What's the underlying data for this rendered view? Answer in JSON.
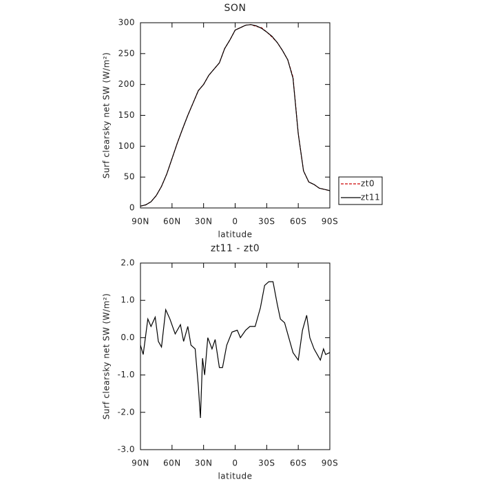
{
  "chart_data": [
    {
      "type": "line",
      "title": "SON",
      "xlabel": "latitude",
      "ylabel": "Surf clearsky net SW (W/m²)",
      "x": [
        90,
        85,
        80,
        75,
        70,
        65,
        60,
        55,
        50,
        45,
        40,
        35,
        30,
        25,
        20,
        15,
        10,
        5,
        0,
        -5,
        -10,
        -15,
        -20,
        -25,
        -30,
        -35,
        -40,
        -45,
        -50,
        -55,
        -60,
        -65,
        -70,
        -75,
        -80,
        -85,
        -90
      ],
      "series": [
        {
          "name": "zt0",
          "color": "#cc0000",
          "linestyle": "dashed",
          "values": [
            3,
            5,
            10,
            20,
            35,
            55,
            80,
            105,
            128,
            150,
            170,
            190,
            200,
            215,
            225,
            235,
            258,
            272,
            288,
            292,
            296,
            297,
            294,
            292,
            285,
            277,
            268,
            255,
            240,
            212,
            120,
            60,
            42,
            38,
            32,
            30,
            28
          ]
        },
        {
          "name": "zt11",
          "color": "#000000",
          "linestyle": "solid",
          "values": [
            3,
            5,
            10,
            20,
            35,
            55,
            80,
            105,
            128,
            150,
            170,
            190,
            200,
            215,
            225,
            235,
            258,
            272,
            288,
            292,
            296,
            297,
            295,
            291,
            285,
            278,
            268,
            255,
            240,
            210,
            120,
            60,
            42,
            38,
            32,
            30,
            28
          ]
        }
      ],
      "xlim": [
        90,
        -90
      ],
      "xticks": [
        {
          "value": 90,
          "label": "90N"
        },
        {
          "value": 60,
          "label": "60N"
        },
        {
          "value": 30,
          "label": "30N"
        },
        0,
        {
          "value": -30,
          "label": "30S"
        },
        {
          "value": -60,
          "label": "60S"
        },
        {
          "value": -90,
          "label": "90S"
        }
      ],
      "ylim": [
        0,
        300
      ],
      "yticks": [
        0,
        50,
        100,
        150,
        200,
        250,
        300
      ],
      "legend": "outside-right"
    },
    {
      "type": "line",
      "title": "zt11 - zt0",
      "xlabel": "latitude",
      "ylabel": "Surf clearsky net SW (W/m²)",
      "x": [
        90,
        87.4,
        83,
        80,
        76,
        73,
        70,
        66,
        62,
        57,
        52,
        49,
        45,
        42,
        38,
        35,
        33,
        31,
        29,
        26,
        22,
        19,
        15,
        12,
        8,
        3,
        -2,
        -5,
        -10,
        -14,
        -19,
        -24,
        -28,
        -32,
        -36,
        -40,
        -43,
        -47,
        -51,
        -55,
        -60,
        -64,
        -68,
        -71,
        -75,
        -81,
        -84,
        -86,
        -90
      ],
      "series": [
        {
          "name": "zt11 - zt0",
          "color": "#000000",
          "linestyle": "solid",
          "values": [
            -0.2,
            -0.45,
            0.5,
            0.3,
            0.55,
            -0.1,
            -0.25,
            0.75,
            0.5,
            0.1,
            0.35,
            -0.1,
            0.3,
            -0.2,
            -0.3,
            -1.3,
            -2.15,
            -0.55,
            -1.0,
            0.0,
            -0.3,
            -0.05,
            -0.8,
            -0.8,
            -0.2,
            0.15,
            0.2,
            0.0,
            0.2,
            0.3,
            0.3,
            0.8,
            1.4,
            1.5,
            1.5,
            0.9,
            0.5,
            0.4,
            0.0,
            -0.4,
            -0.6,
            0.2,
            0.6,
            0.0,
            -0.3,
            -0.6,
            -0.3,
            -0.45,
            -0.4
          ]
        }
      ],
      "xlim": [
        90,
        -90
      ],
      "xticks": [
        {
          "value": 90,
          "label": "90N"
        },
        {
          "value": 60,
          "label": "60N"
        },
        {
          "value": 30,
          "label": "30N"
        },
        0,
        {
          "value": -30,
          "label": "30S"
        },
        {
          "value": -60,
          "label": "60S"
        },
        {
          "value": -90,
          "label": "90S"
        }
      ],
      "ylim": [
        -3,
        2
      ],
      "yticks": [
        {
          "value": -3,
          "label": "-3.0"
        },
        {
          "value": -2,
          "label": "-2.0"
        },
        {
          "value": -1,
          "label": "-1.0"
        },
        {
          "value": 0,
          "label": "0.0"
        },
        {
          "value": 1,
          "label": "1.0"
        },
        {
          "value": 2,
          "label": "2.0"
        }
      ]
    }
  ]
}
